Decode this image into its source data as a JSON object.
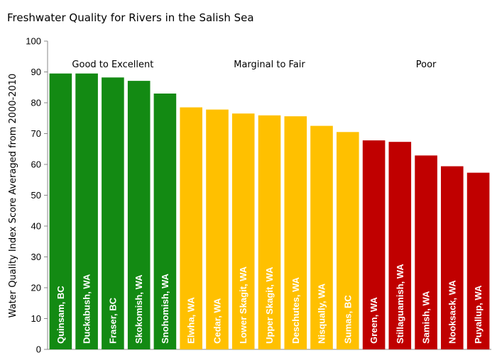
{
  "chart_data": {
    "type": "bar",
    "title": "Freshwater Quality for Rivers in the Salish Sea",
    "ylabel": "Water Quality Index Score Averaged from 2000-2010",
    "xlabel": "",
    "ylim": [
      0,
      100
    ],
    "yticks": [
      0,
      10,
      20,
      30,
      40,
      50,
      60,
      70,
      80,
      90,
      100
    ],
    "grid": false,
    "categories": [
      "Quinsam, BC",
      "Duckabush, WA",
      "Fraser, BC",
      "Skokomish, WA",
      "Snohomish, WA",
      "Elwha, WA",
      "Cedar, WA",
      "Lower Skagit, WA",
      "Upper Skagit, WA",
      "Deschutes, WA",
      "Nisqually, WA",
      "Sumas, BC",
      "Green, WA",
      "Stillaguamish, WA",
      "Samish, WA",
      "Nooksack, WA",
      "Puyallup, WA"
    ],
    "values": [
      89.5,
      89.5,
      88.2,
      87.1,
      83.0,
      78.5,
      77.8,
      76.5,
      75.9,
      75.6,
      72.5,
      70.5,
      67.8,
      67.3,
      62.9,
      59.4,
      57.3
    ],
    "bar_groups": [
      0,
      0,
      0,
      0,
      0,
      1,
      1,
      1,
      1,
      1,
      1,
      1,
      2,
      2,
      2,
      2,
      2
    ],
    "groups": [
      {
        "label": "Good to Excellent",
        "color": "#138a13"
      },
      {
        "label": "Marginal to Fair",
        "color": "#ffc000"
      },
      {
        "label": "Poor",
        "color": "#c00000"
      }
    ]
  }
}
